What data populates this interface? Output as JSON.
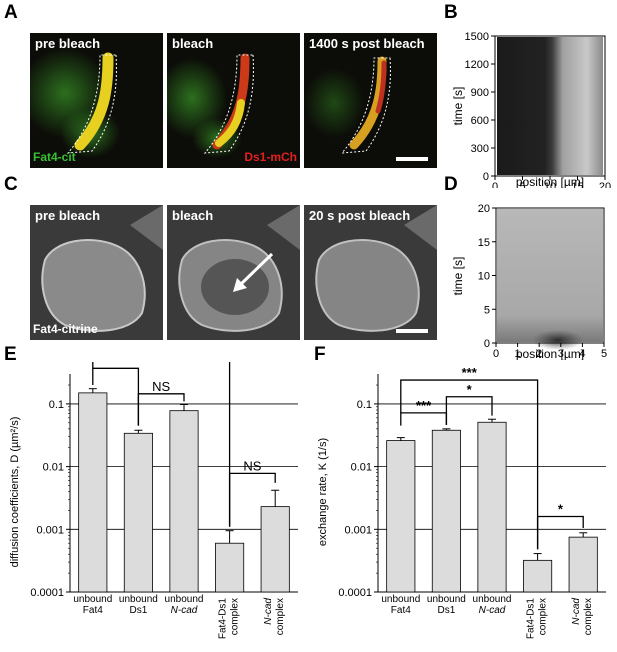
{
  "panels": {
    "A": {
      "label": "A",
      "images": [
        "pre bleach",
        "bleach",
        "1400 s post bleach"
      ],
      "channel_green": "Fat4-cit",
      "channel_red": "Ds1-mCh",
      "colors": {
        "green": "#38c030",
        "red": "#e02020",
        "yellow": "#f0e020"
      }
    },
    "B": {
      "label": "B",
      "ylabel": "time [s]",
      "xlabel": "position [µm]",
      "yticks": [
        "0",
        "300",
        "600",
        "900",
        "1200",
        "1500"
      ],
      "xticks": [
        "0",
        "5",
        "10",
        "15",
        "20"
      ],
      "xlim": [
        0,
        20
      ],
      "ylim": [
        0,
        1500
      ]
    },
    "C": {
      "label": "C",
      "images": [
        "pre bleach",
        "bleach",
        "20 s post bleach"
      ],
      "channel": "Fat4-citrine"
    },
    "D": {
      "label": "D",
      "ylabel": "time [s]",
      "xlabel": "position [µm]",
      "yticks": [
        "0",
        "5",
        "10",
        "15",
        "20"
      ],
      "xticks": [
        "0",
        "1",
        "2",
        "3",
        "4",
        "5"
      ],
      "xlim": [
        0,
        5
      ],
      "ylim": [
        0,
        20
      ]
    }
  },
  "chart_data": [
    {
      "id": "E",
      "panel_label": "E",
      "type": "bar",
      "yscale": "log",
      "ylabel": "diffusion coefficients, D (µm²/s)",
      "ylim": [
        0.0001,
        0.3
      ],
      "yticks": [
        "0.0001",
        "0.001",
        "0.01",
        "0.1"
      ],
      "grid": true,
      "categories": [
        [
          "unbound",
          "Fat4"
        ],
        [
          "unbound",
          "Ds1"
        ],
        [
          "unbound",
          "N-cad"
        ],
        [
          "Fat4-Ds1",
          "complex"
        ],
        [
          "N-cad",
          "complex"
        ]
      ],
      "values": [
        0.15,
        0.034,
        0.078,
        0.0006,
        0.0023
      ],
      "errors_upper": [
        0.175,
        0.038,
        0.098,
        0.00095,
        0.0042
      ],
      "significance": [
        {
          "label": "***",
          "from": 0,
          "to": 1
        },
        {
          "label": "NS",
          "from": 1,
          "to": 2
        },
        {
          "label": "***",
          "from": 0,
          "to": 3
        },
        {
          "label": "NS",
          "from": 3,
          "to": 4
        }
      ]
    },
    {
      "id": "F",
      "panel_label": "F",
      "type": "bar",
      "yscale": "log",
      "ylabel": "exchange rate, K (1/s)",
      "ylim": [
        0.0001,
        0.3
      ],
      "yticks": [
        "0.0001",
        "0.001",
        "0.01",
        "0.1"
      ],
      "grid": true,
      "categories": [
        [
          "unbound",
          "Fat4"
        ],
        [
          "unbound",
          "Ds1"
        ],
        [
          "unbound",
          "N-cad"
        ],
        [
          "Fat4-Ds1",
          "complex"
        ],
        [
          "N-cad",
          "complex"
        ]
      ],
      "values": [
        0.026,
        0.038,
        0.051,
        0.00032,
        0.00075
      ],
      "errors_upper": [
        0.029,
        0.04,
        0.057,
        0.00041,
        0.00088
      ],
      "significance": [
        {
          "label": "***",
          "from": 0,
          "to": 1
        },
        {
          "label": "*",
          "from": 1,
          "to": 2
        },
        {
          "label": "***",
          "from": 0,
          "to": 3
        },
        {
          "label": "*",
          "from": 3,
          "to": 4
        }
      ]
    }
  ]
}
